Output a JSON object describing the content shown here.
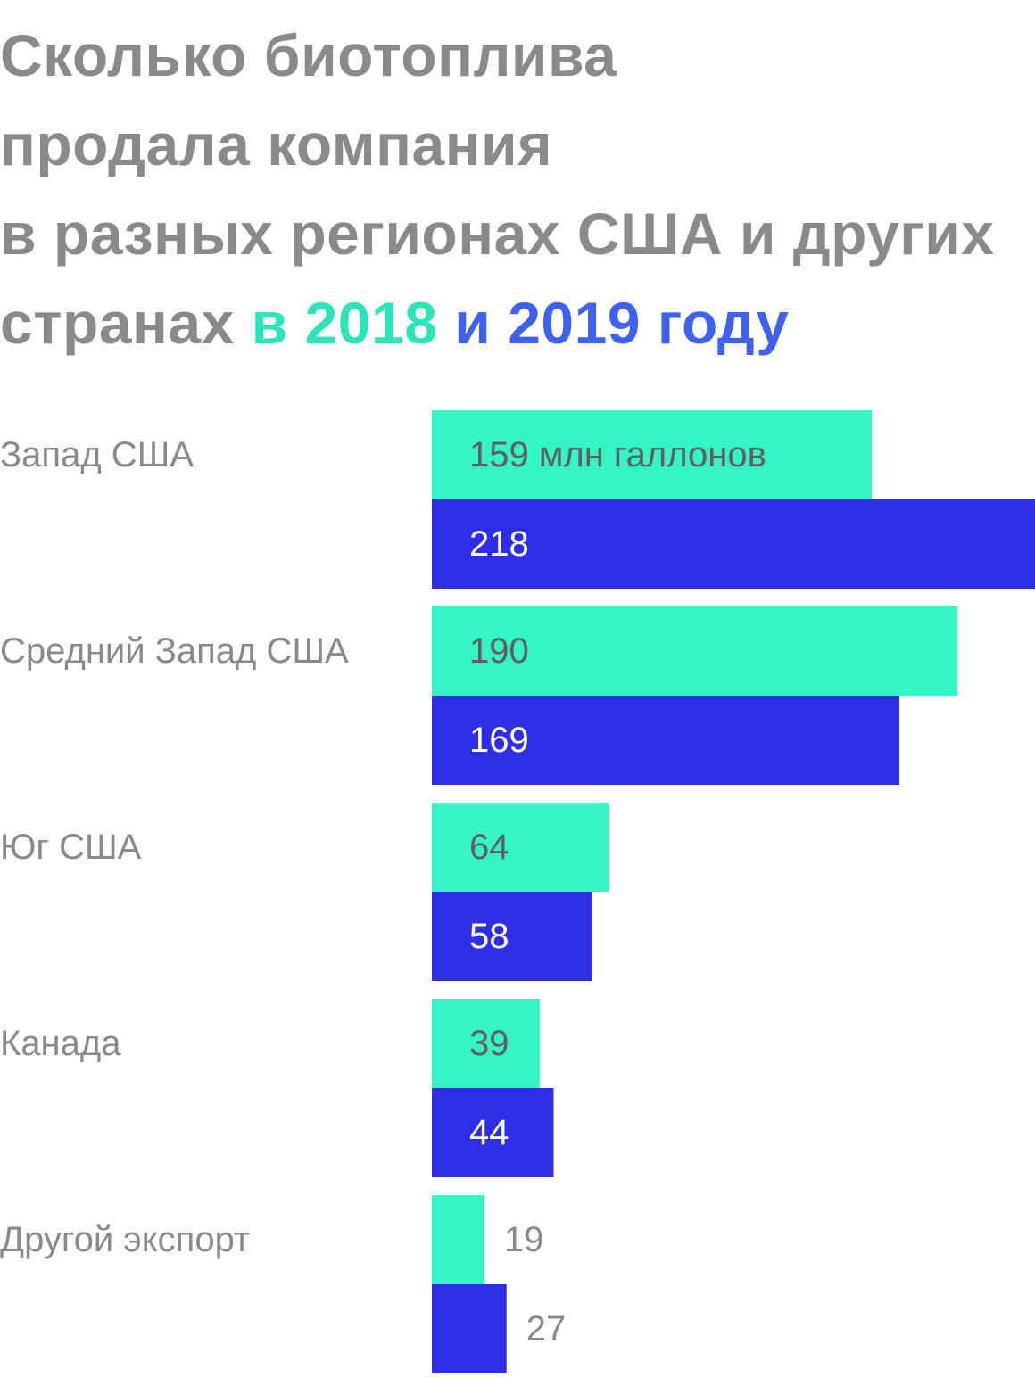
{
  "title": {
    "line1": "Сколько биотоплива",
    "line2": "продала компания",
    "line3": "в разных регионах США и других",
    "line4_prefix": "странах",
    "line4_in": "в",
    "line4_year1": "2018",
    "line4_and": "и",
    "line4_year2": "2019",
    "line4_suffix": "году"
  },
  "colors": {
    "title": "#8a8a8a",
    "label": "#8a8a8a",
    "series_2018": "#33f5c5",
    "series_2019": "#2e2ee6",
    "title_2018": "#2de3b8",
    "title_2019": "#4060f0",
    "value_on_2018": "#5f5f5f",
    "value_on_2019": "#ffffff",
    "value_outside": "#8a8a8a"
  },
  "chart_data": {
    "type": "bar",
    "orientation": "horizontal",
    "unit": "млн галлонов",
    "categories": [
      "Запад США",
      "Средний Запад США",
      "Юг США",
      "Канада",
      "Другой экспорт"
    ],
    "series": [
      {
        "name": "2018",
        "values": [
          159,
          190,
          64,
          39,
          19
        ]
      },
      {
        "name": "2019",
        "values": [
          218,
          169,
          58,
          44,
          27
        ]
      }
    ],
    "value_labels": {
      "2018": [
        "159 млн галлонов",
        "190",
        "64",
        "39",
        "19"
      ],
      "2019": [
        "218",
        "169",
        "58",
        "44",
        "27"
      ]
    },
    "xlim": [
      0,
      218
    ],
    "grid": false,
    "legend": "in-title"
  }
}
